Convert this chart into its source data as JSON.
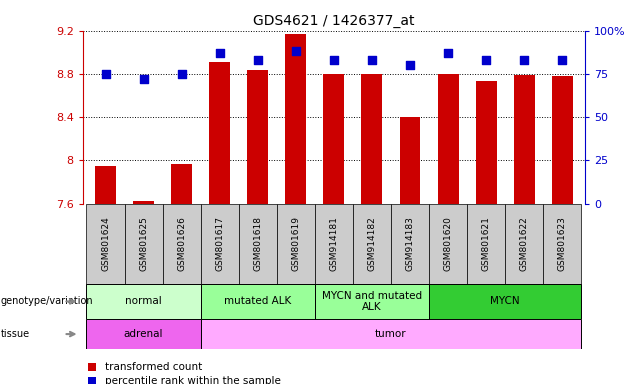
{
  "title": "GDS4621 / 1426377_at",
  "samples": [
    "GSM801624",
    "GSM801625",
    "GSM801626",
    "GSM801617",
    "GSM801618",
    "GSM801619",
    "GSM914181",
    "GSM914182",
    "GSM914183",
    "GSM801620",
    "GSM801621",
    "GSM801622",
    "GSM801623"
  ],
  "transformed_count": [
    7.95,
    7.62,
    7.97,
    8.91,
    8.84,
    9.17,
    8.8,
    8.8,
    8.4,
    8.8,
    8.73,
    8.79,
    8.78
  ],
  "percentile_rank": [
    75,
    72,
    75,
    87,
    83,
    88,
    83,
    83,
    80,
    87,
    83,
    83,
    83
  ],
  "ylim_left": [
    7.6,
    9.2
  ],
  "ylim_right": [
    0,
    100
  ],
  "yticks_left": [
    7.6,
    8.0,
    8.4,
    8.8,
    9.2
  ],
  "yticks_right": [
    0,
    25,
    50,
    75,
    100
  ],
  "ytick_labels_left": [
    "7.6",
    "8",
    "8.4",
    "8.8",
    "9.2"
  ],
  "ytick_labels_right": [
    "0",
    "25",
    "50",
    "75",
    "100%"
  ],
  "bar_color": "#cc0000",
  "dot_color": "#0000cc",
  "baseline": 7.6,
  "genotype_groups": [
    {
      "label": "normal",
      "start": 0,
      "end": 3,
      "color": "#ccffcc"
    },
    {
      "label": "mutated ALK",
      "start": 3,
      "end": 6,
      "color": "#99ff99"
    },
    {
      "label": "MYCN and mutated\nALK",
      "start": 6,
      "end": 9,
      "color": "#99ff99"
    },
    {
      "label": "MYCN",
      "start": 9,
      "end": 13,
      "color": "#33cc33"
    }
  ],
  "tissue_groups": [
    {
      "label": "adrenal",
      "start": 0,
      "end": 3,
      "color": "#ee66ee"
    },
    {
      "label": "tumor",
      "start": 3,
      "end": 13,
      "color": "#ffaaff"
    }
  ],
  "bar_width": 0.55,
  "dot_size": 28,
  "axis_color_left": "#cc0000",
  "axis_color_right": "#0000cc",
  "tick_bg_color": "#cccccc",
  "fig_width": 6.36,
  "fig_height": 3.84,
  "dpi": 100
}
